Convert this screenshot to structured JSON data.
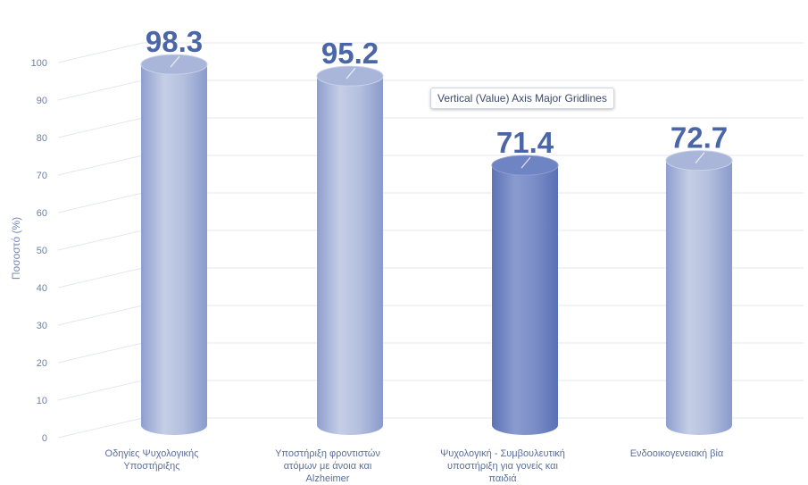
{
  "chart_data": {
    "type": "bar",
    "style": "3d-cylinder",
    "categories": [
      [
        "Οδηγίες Ψυχολογικής",
        "Υποστήριξης"
      ],
      [
        "Υποστήριξη φροντιστών",
        "ατόμων με άνοια και",
        "Alzheimer"
      ],
      [
        "Ψυχολογική - Συμβουλευτική",
        "υποστήριξη για γονείς και",
        "παιδιά"
      ],
      [
        "Ενδοοικογενειακή βία"
      ]
    ],
    "values": [
      98.3,
      95.2,
      71.4,
      72.7
    ],
    "value_labels": [
      "98.3",
      "95.2",
      "71.4",
      "72.7"
    ],
    "ylabel": "Ποσοστό (%)",
    "ylim": [
      0,
      100
    ],
    "yticks": [
      0,
      10,
      20,
      30,
      40,
      50,
      60,
      70,
      80,
      90,
      100
    ],
    "grid": true,
    "colors": {
      "bar_light": "#c3cce4",
      "bar_mid": "#a6b4d8",
      "bar_dark": "#8497c8",
      "bar_selected": "#6a7fbf",
      "selected_index": 2,
      "value_text": "#4a66a6",
      "gridline": "#e3e7ee"
    }
  },
  "tooltip": {
    "text": "Vertical (Value) Axis Major Gridlines"
  }
}
